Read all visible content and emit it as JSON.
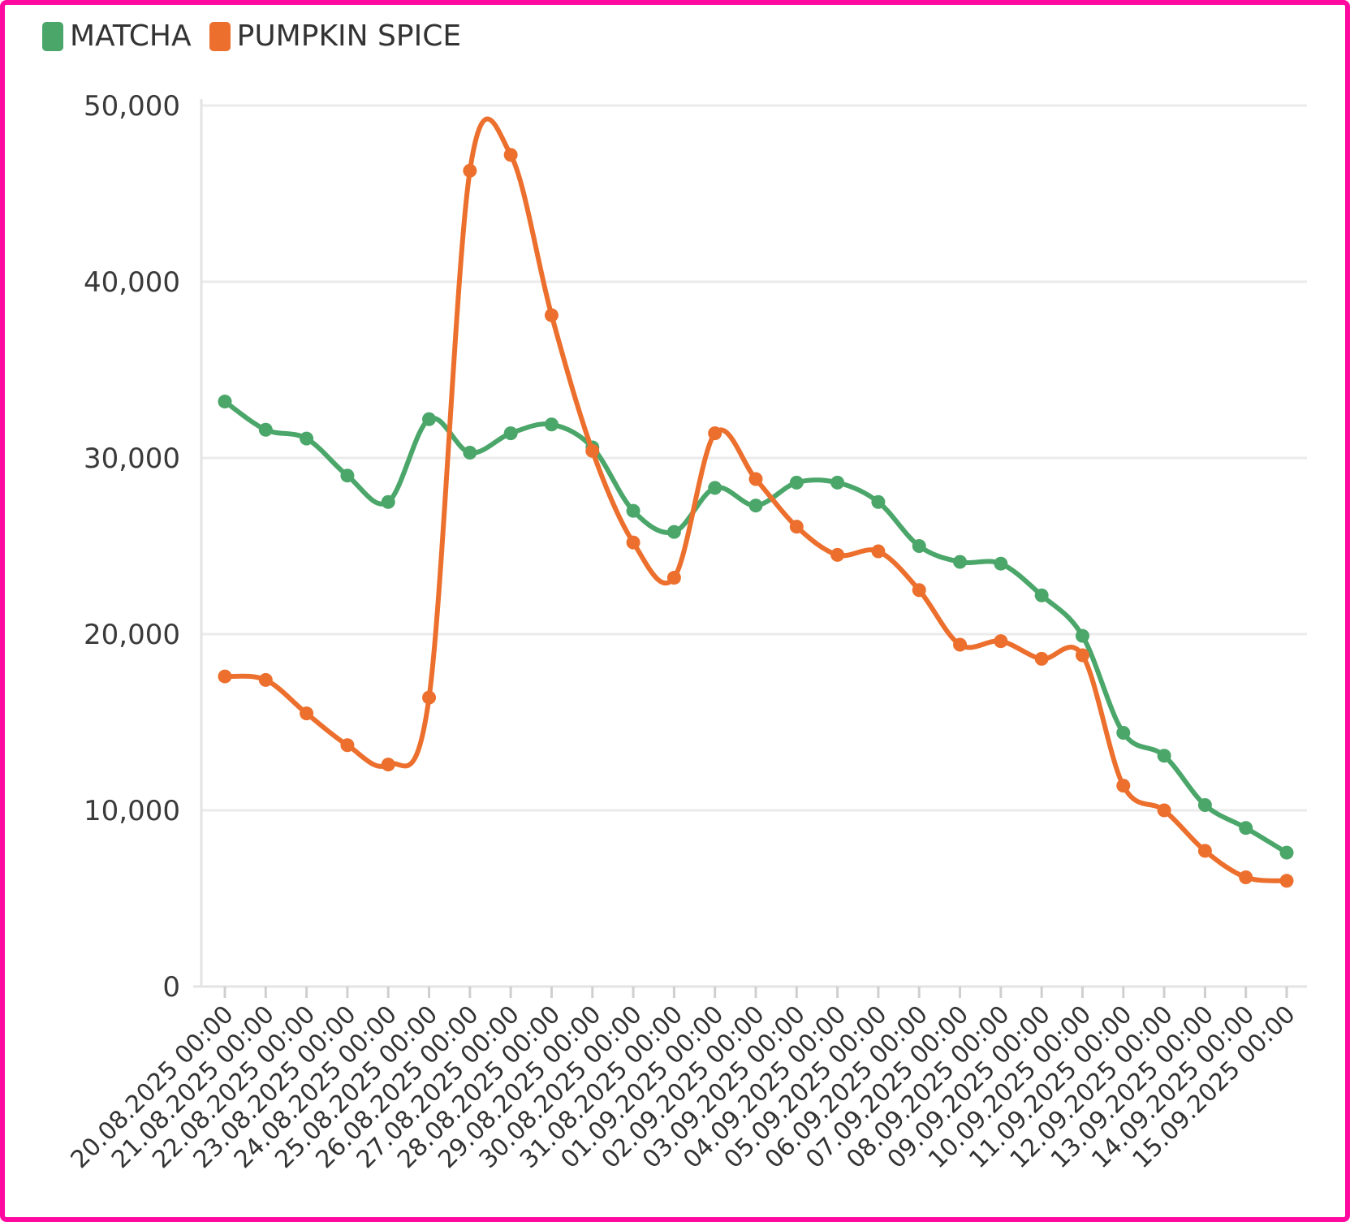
{
  "chart_data": {
    "type": "line",
    "categories": [
      "20.08.2025 00:00",
      "21.08.2025 00:00",
      "22.08.2025 00:00",
      "23.08.2025 00:00",
      "24.08.2025 00:00",
      "25.08.2025 00:00",
      "26.08.2025 00:00",
      "27.08.2025 00:00",
      "28.08.2025 00:00",
      "29.08.2025 00:00",
      "30.08.2025 00:00",
      "31.08.2025 00:00",
      "01.09.2025 00:00",
      "02.09.2025 00:00",
      "03.09.2025 00:00",
      "04.09.2025 00:00",
      "05.09.2025 00:00",
      "06.09.2025 00:00",
      "07.09.2025 00:00",
      "08.09.2025 00:00",
      "09.09.2025 00:00",
      "10.09.2025 00:00",
      "11.09.2025 00:00",
      "12.09.2025 00:00",
      "13.09.2025 00:00",
      "14.09.2025 00:00",
      "15.09.2025 00:00"
    ],
    "series": [
      {
        "name": "MATCHA",
        "color": "#4ba66a",
        "values": [
          33200,
          31600,
          31100,
          29000,
          27500,
          32200,
          30300,
          31400,
          31900,
          30600,
          27000,
          25800,
          28300,
          27300,
          28600,
          28600,
          27500,
          25000,
          24100,
          24000,
          22200,
          19900,
          14400,
          13100,
          10300,
          9000,
          7600
        ]
      },
      {
        "name": "PUMPKIN SPICE",
        "color": "#ec6f2d",
        "values": [
          17600,
          17400,
          15500,
          13700,
          12600,
          16400,
          46300,
          47200,
          38100,
          30400,
          25200,
          23200,
          31400,
          28800,
          26100,
          24500,
          24700,
          22500,
          19400,
          19600,
          18600,
          18800,
          11400,
          10000,
          7700,
          6200,
          6000
        ]
      }
    ],
    "y_ticks": [
      "0",
      "10,000",
      "20,000",
      "30,000",
      "40,000",
      "50,000"
    ],
    "ylim": [
      0,
      50000
    ],
    "grid": true,
    "legend_position": "top-left",
    "title": "",
    "xlabel": "",
    "ylabel": ""
  }
}
